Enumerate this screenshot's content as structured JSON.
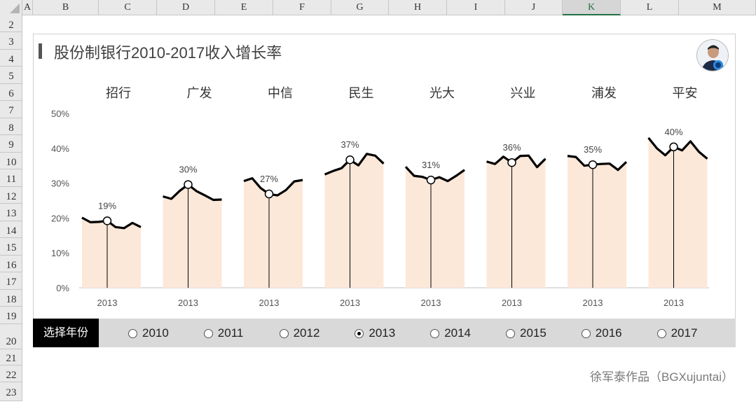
{
  "sheet": {
    "columns": [
      "A",
      "B",
      "C",
      "D",
      "E",
      "F",
      "G",
      "H",
      "I",
      "J",
      "K",
      "L",
      "M"
    ],
    "selected_column": "K",
    "rows": [
      "2",
      "3",
      "4",
      "5",
      "6",
      "7",
      "8",
      "9",
      "10",
      "11",
      "12",
      "13",
      "14",
      "15",
      "16",
      "17",
      "18",
      "19",
      "20",
      "21",
      "22",
      "23"
    ]
  },
  "title": "股份制银行2010-2017收入增长率",
  "selector": {
    "label": "选择年份",
    "options": [
      "2010",
      "2011",
      "2012",
      "2013",
      "2014",
      "2015",
      "2016",
      "2017"
    ],
    "selected": "2013"
  },
  "credit": "徐军泰作品（BGXujuntai）",
  "colors": {
    "fill": "#fce8d9",
    "line": "#000000",
    "selector_bg": "#d9d9d9"
  },
  "chart_data": {
    "type": "line",
    "categories": [
      "招行",
      "广发",
      "中信",
      "民生",
      "光大",
      "兴业",
      "浦发",
      "平安"
    ],
    "selected_year": "2013",
    "x": [
      "2010",
      "2011",
      "2012",
      "2013",
      "2014",
      "2015",
      "2016",
      "2017"
    ],
    "ylim": [
      0,
      50
    ],
    "yticks": [
      "0%",
      "10%",
      "20%",
      "30%",
      "40%",
      "50%"
    ],
    "unit": "%",
    "series": [
      {
        "name": "招行",
        "values": [
          20.1,
          18.8,
          18.9,
          19.2,
          17.4,
          17.1,
          18.6,
          17.4
        ]
      },
      {
        "name": "广发",
        "values": [
          26.2,
          25.5,
          27.8,
          29.6,
          27.7,
          26.5,
          25.2,
          25.3
        ]
      },
      {
        "name": "中信",
        "values": [
          30.6,
          31.4,
          28.6,
          26.9,
          26.5,
          28.0,
          30.5,
          30.9
        ]
      },
      {
        "name": "民生",
        "values": [
          32.5,
          33.5,
          34.3,
          36.7,
          35.1,
          38.4,
          37.9,
          35.6
        ]
      },
      {
        "name": "光大",
        "values": [
          34.7,
          32.1,
          31.8,
          30.9,
          31.7,
          30.6,
          32.1,
          33.8
        ]
      },
      {
        "name": "兴业",
        "values": [
          36.2,
          35.5,
          37.6,
          35.9,
          37.8,
          37.9,
          34.6,
          37.0
        ]
      },
      {
        "name": "浦发",
        "values": [
          37.8,
          37.5,
          35.0,
          35.3,
          35.5,
          35.6,
          33.8,
          36.1
        ]
      },
      {
        "name": "平安",
        "values": [
          43.0,
          40.0,
          38.0,
          40.4,
          39.4,
          42.0,
          39.0,
          37.0
        ]
      }
    ],
    "labels": [
      "19%",
      "30%",
      "27%",
      "37%",
      "31%",
      "36%",
      "35%",
      "40%"
    ]
  }
}
